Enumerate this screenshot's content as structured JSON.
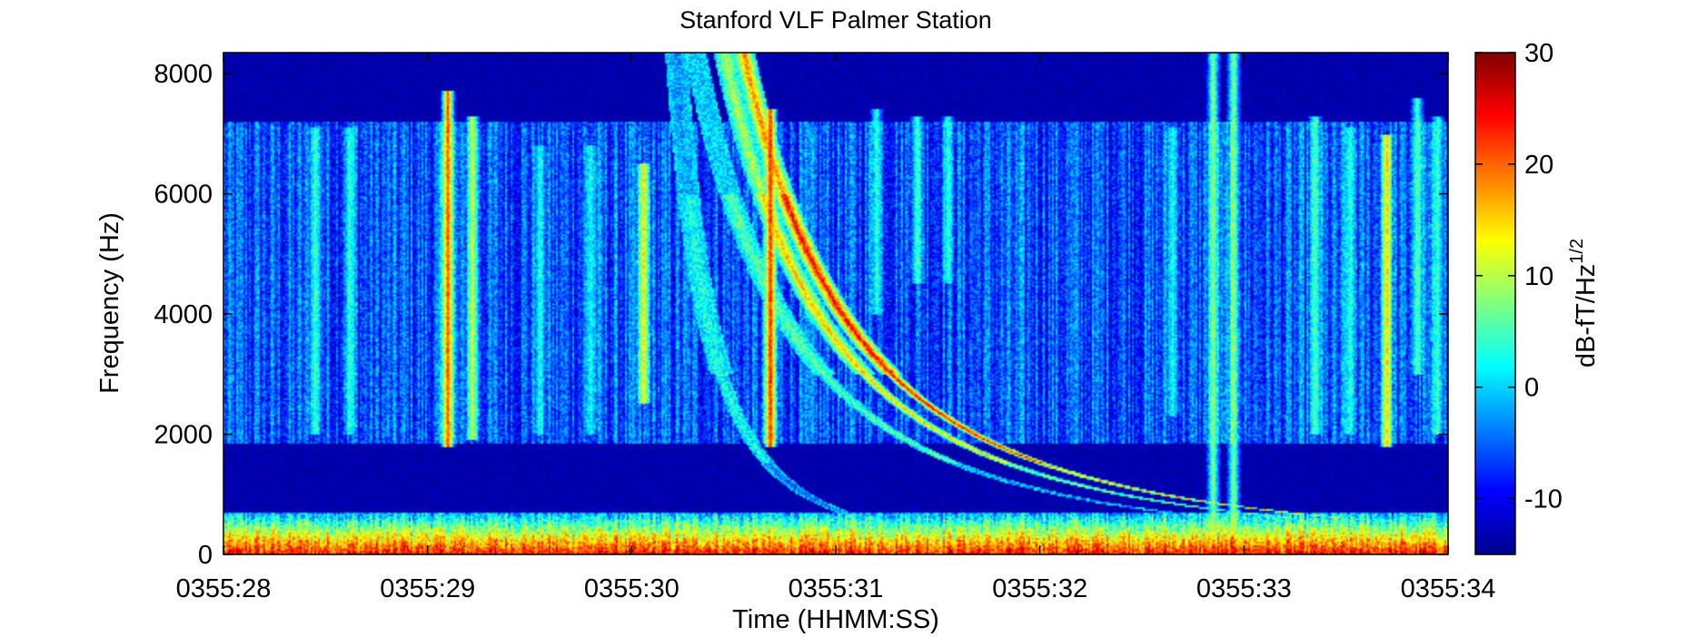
{
  "chart_data": {
    "type": "heatmap",
    "title": "Stanford VLF  Palmer Station",
    "xlabel": "Time (HHMM:SS)",
    "ylabel": "Frequency (Hz)",
    "x_tick_labels": [
      "0355:28",
      "0355:29",
      "0355:30",
      "0355:31",
      "0355:32",
      "0355:33",
      "0355:34"
    ],
    "x_range_seconds": [
      28,
      34
    ],
    "y_ticks": [
      0,
      2000,
      4000,
      6000,
      8000
    ],
    "ylim": [
      0,
      8350
    ],
    "colorbar": {
      "label": "dB-fT/Hz",
      "label_superscript": "1/2",
      "ticks": [
        -10,
        0,
        10,
        20,
        30
      ],
      "range": [
        -15,
        30
      ],
      "colormap": "jet"
    },
    "background_level_db": -13,
    "features": {
      "whistlers": [
        {
          "t_at_1000hz": 32.6,
          "t_at_7000hz": 30.65,
          "peak_db": 25
        },
        {
          "t_at_1000hz": 32.4,
          "t_at_7000hz": 30.55,
          "peak_db": 16
        },
        {
          "t_at_1000hz": 32.1,
          "t_at_7000hz": 30.4,
          "peak_db": 6
        },
        {
          "t_at_1000hz": 30.85,
          "t_at_7000hz": 30.25,
          "peak_db": 3
        }
      ],
      "sferics": [
        {
          "t": 29.1,
          "f_low": 1800,
          "f_high": 7700,
          "db": 22
        },
        {
          "t": 29.22,
          "f_low": 1900,
          "f_high": 7300,
          "db": 12
        },
        {
          "t": 30.06,
          "f_low": 2500,
          "f_high": 6500,
          "db": 14
        },
        {
          "t": 30.68,
          "f_low": 1800,
          "f_high": 7400,
          "db": 24
        },
        {
          "t": 31.4,
          "f_low": 4500,
          "f_high": 7300,
          "db": 5
        },
        {
          "t": 31.55,
          "f_low": 4500,
          "f_high": 7300,
          "db": 4
        },
        {
          "t": 32.85,
          "f_low": 0,
          "f_high": 8350,
          "db": 9
        },
        {
          "t": 32.95,
          "f_low": 0,
          "f_high": 8350,
          "db": 9
        },
        {
          "t": 32.65,
          "f_low": 2300,
          "f_high": 7100,
          "db": 3
        },
        {
          "t": 33.7,
          "f_low": 1800,
          "f_high": 7000,
          "db": 16
        },
        {
          "t": 33.85,
          "f_low": 3000,
          "f_high": 7600,
          "db": 6
        },
        {
          "t": 28.45,
          "f_low": 2000,
          "f_high": 7100,
          "db": 5
        },
        {
          "t": 28.62,
          "f_low": 2000,
          "f_high": 7100,
          "db": 4
        },
        {
          "t": 29.55,
          "f_low": 2000,
          "f_high": 6800,
          "db": 3
        },
        {
          "t": 29.8,
          "f_low": 2000,
          "f_high": 6800,
          "db": 3
        },
        {
          "t": 31.2,
          "f_low": 4000,
          "f_high": 7400,
          "db": 4
        },
        {
          "t": 33.35,
          "f_low": 2000,
          "f_high": 7300,
          "db": 6
        },
        {
          "t": 33.52,
          "f_low": 2000,
          "f_high": 7100,
          "db": 4
        },
        {
          "t": 33.95,
          "f_low": 2000,
          "f_high": 7300,
          "db": 5
        }
      ],
      "low_band": {
        "f_low": 0,
        "f_high": 700,
        "db": 22
      },
      "noise_band": {
        "f_low": 1850,
        "f_high": 7200,
        "db": -6
      }
    }
  }
}
